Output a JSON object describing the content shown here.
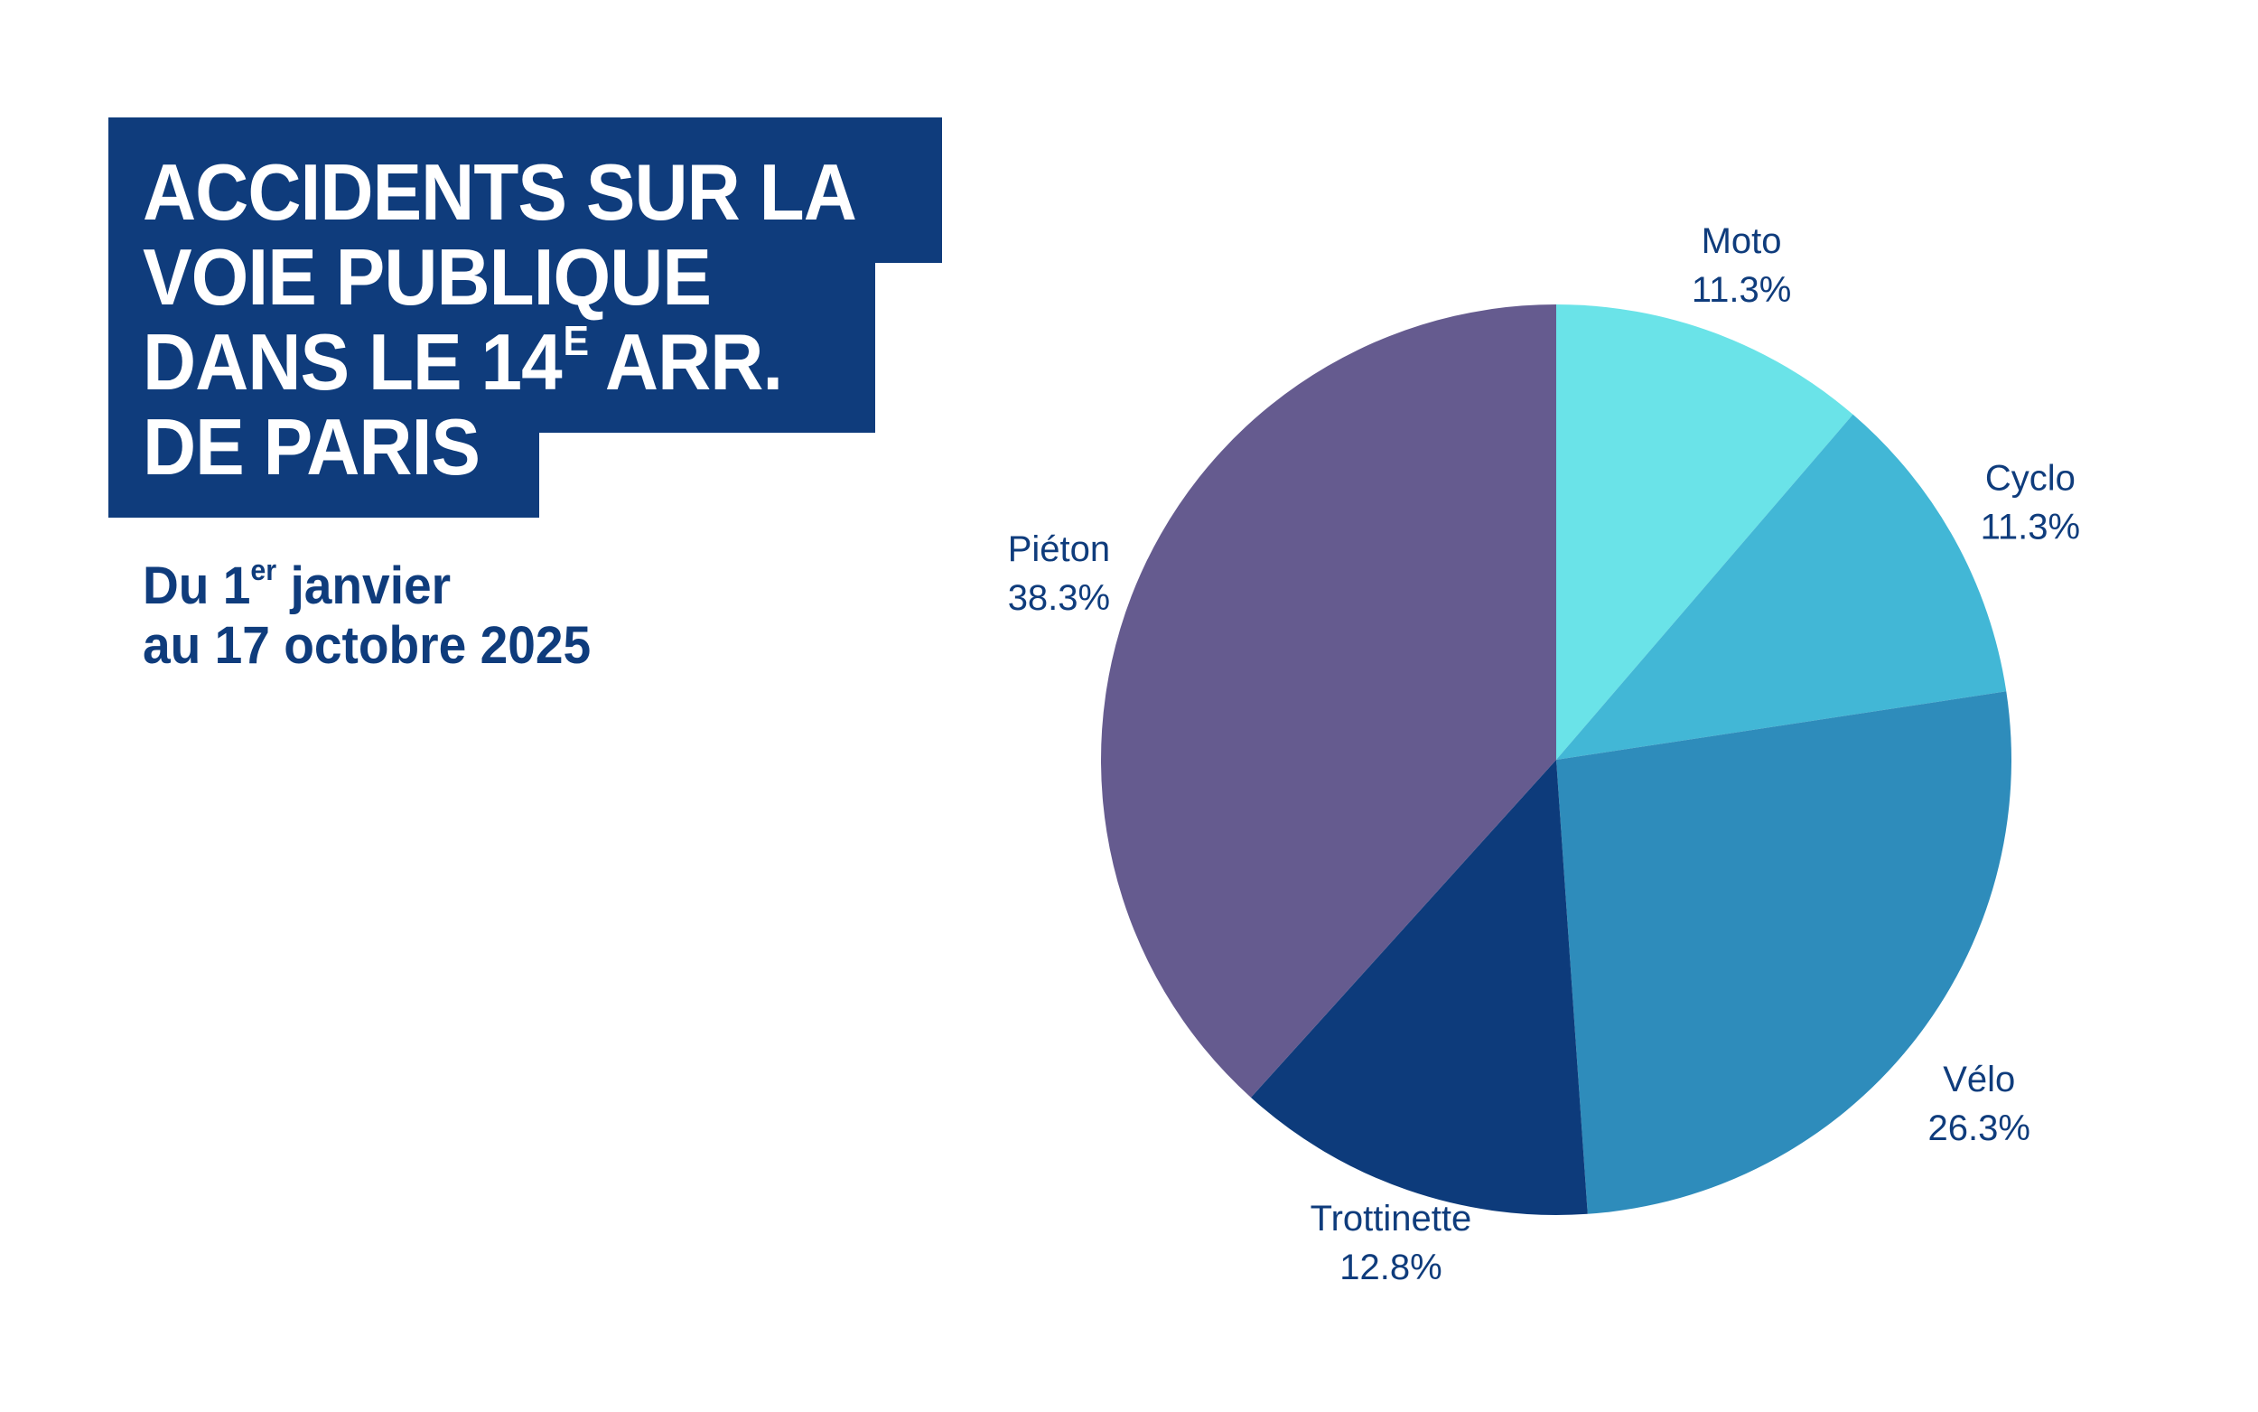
{
  "title": {
    "lines": [
      "ACCIDENTS SUR LA",
      "VOIE PUBLIQUE",
      "DANS LE 14",
      "DE PARIS"
    ],
    "line3_superscript": "E",
    "line3_suffix": " ARR.",
    "background_color": "#0f3c7c",
    "text_color": "#ffffff"
  },
  "subtitle": {
    "line1_prefix": "Du 1",
    "line1_superscript": "er",
    "line1_suffix": " janvier",
    "line2": "au 17 octobre 2025",
    "color": "#0f3c7c"
  },
  "chart_data": {
    "type": "pie",
    "title": "ACCIDENTS SUR LA VOIE PUBLIQUE DANS LE 14E ARR. DE PARIS",
    "subtitle": "Du 1er janvier au 17 octobre 2025",
    "start_angle": "12 o'clock",
    "direction": "clockwise",
    "label_color": "#0f3c7c",
    "slices": [
      {
        "label": "Moto",
        "value": 11.3,
        "display": "11.3%",
        "color": "#6ae3e8"
      },
      {
        "label": "Cyclo",
        "value": 11.3,
        "display": "11.3%",
        "color": "#42b7d6"
      },
      {
        "label": "Vélo",
        "value": 26.3,
        "display": "26.3%",
        "color": "#2e8cbb"
      },
      {
        "label": "Trottinette",
        "value": 12.8,
        "display": "12.8%",
        "color": "#0d3b7b"
      },
      {
        "label": "Piéton",
        "value": 38.3,
        "display": "38.3%",
        "color": "#655b8f"
      }
    ]
  }
}
